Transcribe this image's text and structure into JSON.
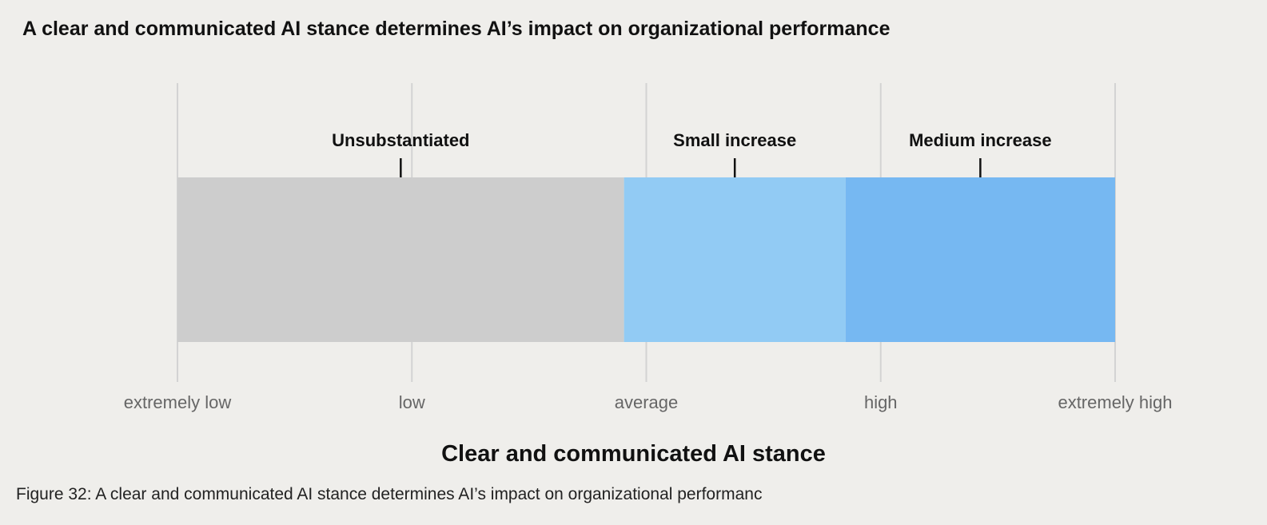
{
  "chart_data": {
    "type": "bar",
    "title": "A clear and communicated AI stance determines AI’s impact on organizational performance",
    "xlabel": "Clear and communicated AI stance",
    "ylabel": "",
    "x_ticks": [
      "extremely low",
      "low",
      "average",
      "high",
      "extremely high"
    ],
    "xlim": [
      0,
      4
    ],
    "grid": true,
    "segments": [
      {
        "label": "Unsubstantiated",
        "start": 0,
        "end": 1.905,
        "color": "#cdcdcd"
      },
      {
        "label": "Small increase",
        "start": 1.905,
        "end": 2.85,
        "color": "#92cbf4"
      },
      {
        "label": "Medium increase",
        "start": 2.85,
        "end": 4,
        "color": "#76b8f2"
      }
    ]
  },
  "caption": "Figure 32: A clear and communicated AI stance determines AI’s impact on organizational performanc"
}
